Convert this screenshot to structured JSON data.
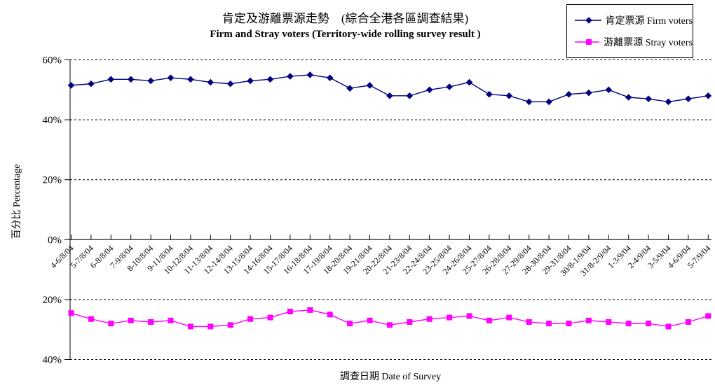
{
  "chart_data": {
    "type": "line",
    "title": "肯定及游離票源走勢　(綜合全港各區調查結果)",
    "subtitle": "Firm and Stray voters (Territory-wide rolling survey result )",
    "xlabel": "調查日期 Date of Survey",
    "ylabel": "百分比 Percentage",
    "grid": "horizontal dashed gridlines every 20%",
    "legend_position": "top-right",
    "y_axis": {
      "tick_labels": [
        "60%",
        "40%",
        "20%",
        "0%",
        "20%",
        "40%"
      ],
      "note": "upper half (0%-60%) plots firm voters; lower half is a mirrored axis (0%-40%, drawn downward) plotting stray voters; labels show absolute values"
    },
    "categories": [
      "4-6/8/04",
      "5-7/8/04",
      "6-8/8/04",
      "7-9/8/04",
      "8-10/8/04",
      "9-11/8/04",
      "10-12/8/04",
      "11-13/8/04",
      "12-14/8/04",
      "13-15/8/04",
      "14-16/8/04",
      "15-17/8/04",
      "16-18/8/04",
      "17-19/8/04",
      "18-20/8/04",
      "19-21/8/04",
      "20-22/8/04",
      "21-23/8/04",
      "22-24/8/04",
      "23-25/8/04",
      "24-26/8/04",
      "25-27/8/04",
      "26-28/8/04",
      "27-29/8/04",
      "28-30/8/04",
      "29-31/8/04",
      "30/8-1/9/04",
      "31/8-2/9/04",
      "1-3/9/04",
      "2-4/9/04",
      "3-5/9/04",
      "4-6/9/04",
      "5-7/9/04"
    ],
    "series": [
      {
        "name": "肯定票源 Firm voters",
        "color": "#000080",
        "marker": "diamond",
        "plot_direction": "up",
        "values": [
          51.5,
          52,
          53.5,
          53.5,
          53,
          54,
          53.5,
          52.5,
          52,
          53,
          53.5,
          54.5,
          55,
          54,
          50.5,
          51.5,
          48,
          48,
          50,
          51,
          52.5,
          48.5,
          48,
          46,
          46,
          48.5,
          49,
          50,
          47.5,
          47,
          46,
          47,
          48
        ]
      },
      {
        "name": "游離票源 Stray voters",
        "color": "#FF00FF",
        "marker": "square",
        "plot_direction": "down",
        "values": [
          24.5,
          26.5,
          28,
          27,
          27.5,
          27,
          29,
          29,
          28.5,
          26.5,
          26,
          24,
          23.5,
          25,
          28,
          27,
          28.5,
          27.5,
          26.5,
          26,
          25.5,
          27,
          26,
          27.5,
          28,
          28,
          27,
          27.5,
          28,
          28,
          29,
          27.5,
          25.5
        ]
      }
    ]
  }
}
